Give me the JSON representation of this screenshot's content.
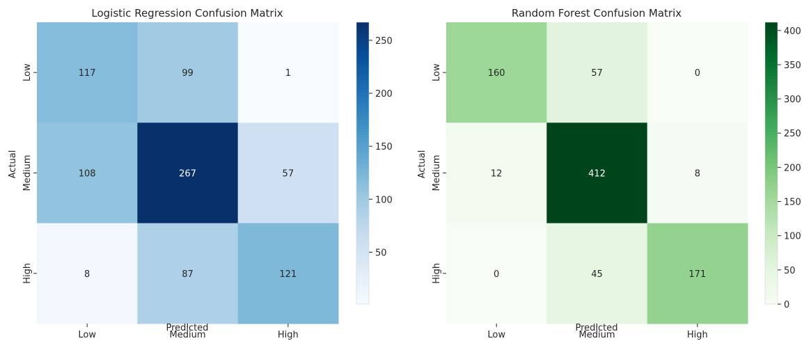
{
  "chart_data": [
    {
      "type": "heatmap",
      "title": "Logistic Regression Confusion Matrix",
      "xlabel": "Predicted",
      "ylabel": "Actual",
      "x_categories": [
        "Low",
        "Medium",
        "High"
      ],
      "y_categories": [
        "Low",
        "Medium",
        "High"
      ],
      "values": [
        [
          117,
          99,
          1
        ],
        [
          108,
          267,
          57
        ],
        [
          8,
          87,
          121
        ]
      ],
      "colormap": "Blues",
      "color_range": [
        1,
        267
      ],
      "colorbar_ticks": [
        50,
        100,
        150,
        200,
        250
      ],
      "colors": [
        "#f7fbff",
        "#deebf7",
        "#c6dbef",
        "#9ecae1",
        "#6baed6",
        "#4292c6",
        "#2171b5",
        "#08519c",
        "#08306b"
      ]
    },
    {
      "type": "heatmap",
      "title": "Random Forest Confusion Matrix",
      "xlabel": "Predicted",
      "ylabel": "Actual",
      "x_categories": [
        "Low",
        "Medium",
        "High"
      ],
      "y_categories": [
        "Low",
        "Medium",
        "High"
      ],
      "values": [
        [
          160,
          57,
          0
        ],
        [
          12,
          412,
          8
        ],
        [
          0,
          45,
          171
        ]
      ],
      "colormap": "Greens",
      "color_range": [
        0,
        412
      ],
      "colorbar_ticks": [
        0,
        50,
        100,
        150,
        200,
        250,
        300,
        350,
        400
      ],
      "colors": [
        "#f7fcf5",
        "#e5f5e0",
        "#c7e9c0",
        "#a1d99b",
        "#74c476",
        "#41ab5d",
        "#238b45",
        "#006d2c",
        "#00441b"
      ]
    }
  ]
}
